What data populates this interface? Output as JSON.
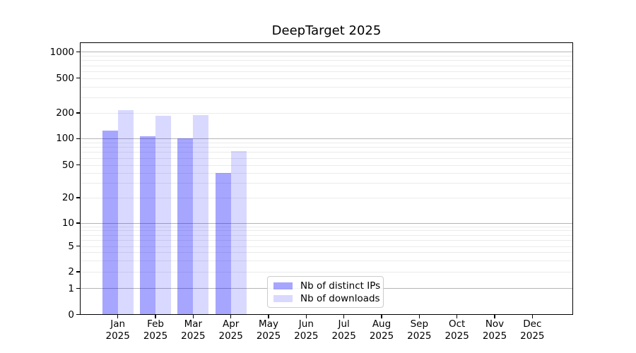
{
  "title": "DeepTarget 2025",
  "chart_data": {
    "type": "bar",
    "title": "DeepTarget 2025",
    "yscale": "symlog",
    "ylim": [
      0,
      1300
    ],
    "grid": true,
    "categories": [
      "Jan",
      "Feb",
      "Mar",
      "Apr",
      "May",
      "Jun",
      "Jul",
      "Aug",
      "Sep",
      "Oct",
      "Nov",
      "Dec"
    ],
    "year": "2025",
    "yticks": [
      0,
      1,
      2,
      5,
      10,
      20,
      50,
      100,
      200,
      500,
      1000
    ],
    "minor_yticks": [
      3,
      4,
      6,
      7,
      8,
      9,
      30,
      40,
      60,
      70,
      80,
      90,
      300,
      400,
      600,
      700,
      800,
      900
    ],
    "major_grid_values": [
      1,
      10,
      100,
      1000
    ],
    "series": [
      {
        "name": "Nb of distinct IPs",
        "color": "#a6a6ff",
        "css_color": "rgba(0,0,255,0.35)",
        "values": [
          125,
          107,
          100,
          40,
          0,
          0,
          0,
          0,
          0,
          0,
          0,
          0
        ]
      },
      {
        "name": "Nb of downloads",
        "color": "#d9d9ff",
        "css_color": "rgba(0,0,255,0.15)",
        "values": [
          215,
          185,
          190,
          72,
          0,
          0,
          0,
          0,
          0,
          0,
          0,
          0
        ]
      }
    ],
    "legend_position": "lower center"
  },
  "legend": {
    "items": [
      {
        "label": "Nb of distinct IPs"
      },
      {
        "label": "Nb of downloads"
      }
    ]
  },
  "colors": {
    "grid_major": "#b5b5b5",
    "grid_minor": "#ebebeb",
    "axis": "#000000",
    "background": "#ffffff",
    "legend_border": "#cccccc"
  }
}
